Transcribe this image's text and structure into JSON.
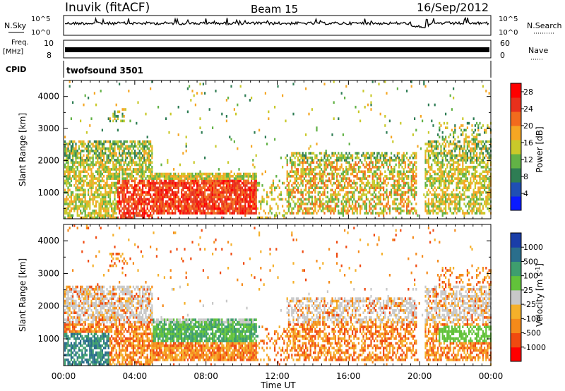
{
  "header": {
    "station": "Inuvik (fitACF)",
    "beam": "Beam 15",
    "date": "16/Sep/2012"
  },
  "top_panels": {
    "nsky_label": "N.Sky",
    "nsearch_label": "N.Search",
    "noise_ticks": [
      "10^5",
      "10^0"
    ],
    "freq_label": "Freq.",
    "freq_unit": "[MHz]",
    "freq_ticks": [
      "10",
      "8"
    ],
    "nave_label": "Nave",
    "nave_ticks": [
      "60",
      "0"
    ],
    "cpid_label": "CPID",
    "cpid_value": "twofsound 3501"
  },
  "x_axis": {
    "label": "Time UT",
    "ticks": [
      "00:00",
      "04:00",
      "08:00",
      "12:00",
      "16:00",
      "20:00",
      "00:00"
    ]
  },
  "colors": {
    "power_scale": [
      "#0a1bff",
      "#1f4fb5",
      "#2e7d54",
      "#62b246",
      "#c9c92a",
      "#f5a623",
      "#f26b1d",
      "#e8301c",
      "#ff0000"
    ],
    "velocity_scale": [
      "#ff0000",
      "#f04a10",
      "#f58a1a",
      "#f5b02a",
      "#c8c8c8",
      "#62c23a",
      "#3e9e6e",
      "#2a6e8c",
      "#1a3ea8"
    ]
  },
  "chart_data": [
    {
      "type": "heatmap",
      "panel": "power",
      "ylabel": "Slant Range [km]",
      "yticks": [
        "1000",
        "2000",
        "3000",
        "4000"
      ],
      "ylim": [
        180,
        4500
      ],
      "xlim_hours": [
        0,
        24
      ],
      "colorbar": {
        "label": "Power [dB]",
        "ticks": [
          "4",
          "8",
          "12",
          "16",
          "20",
          "24",
          "28"
        ],
        "range": [
          0,
          30
        ]
      }
    },
    {
      "type": "heatmap",
      "panel": "velocity",
      "ylabel": "Slant Range [km]",
      "yticks": [
        "1000",
        "2000",
        "3000",
        "4000"
      ],
      "ylim": [
        180,
        4500
      ],
      "xlim_hours": [
        0,
        24
      ],
      "colorbar": {
        "label": "Velocity [m s-1]",
        "label_main": "Velocity",
        "label_unit": "[m s",
        "label_exp": "-1",
        "label_close": "]",
        "ticks": [
          "1000",
          "500",
          "100",
          "25",
          "-25",
          "-100",
          "-500",
          "-1000"
        ],
        "range": [
          -1200,
          1200
        ]
      }
    }
  ]
}
